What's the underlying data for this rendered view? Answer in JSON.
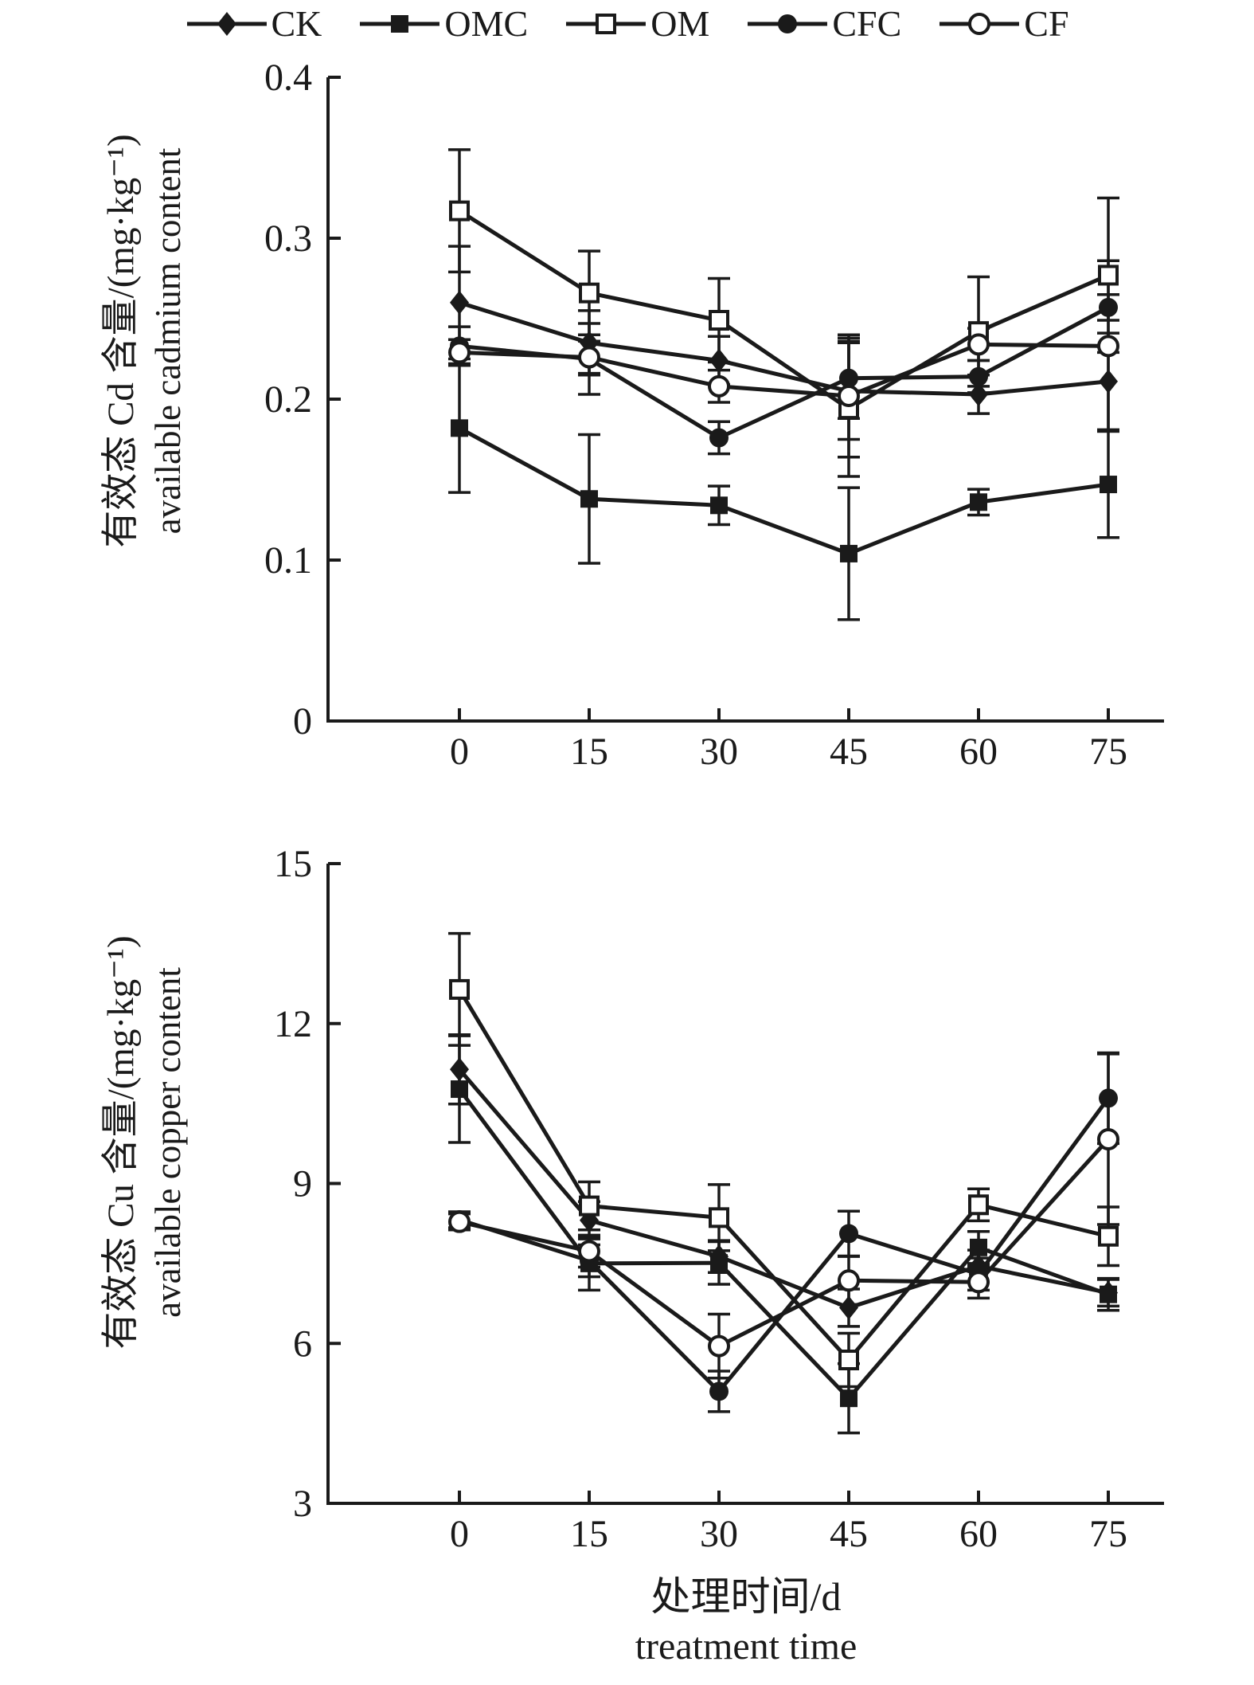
{
  "page": {
    "background": "#ffffff",
    "ink": "#1a1a1a"
  },
  "legend": {
    "position": "top",
    "items": [
      {
        "label": "CK",
        "marker": "diamond-filled"
      },
      {
        "label": "OMC",
        "marker": "square-filled"
      },
      {
        "label": "OM",
        "marker": "square-open"
      },
      {
        "label": "CFC",
        "marker": "circle-filled"
      },
      {
        "label": "CF",
        "marker": "circle-open"
      }
    ]
  },
  "xaxis": {
    "label_zh": "处理时间/d",
    "label_en": "treatment time",
    "ticks": [
      0,
      15,
      30,
      45,
      60,
      75
    ]
  },
  "chart_data": [
    {
      "id": "cd",
      "type": "line",
      "ylabel_zh": "有效态 Cd 含量/(mg·kg⁻¹)",
      "ylabel_en": "available cadmium content",
      "xlabel_zh": "处理时间/d",
      "xlabel_en": "treatment time",
      "xlim": [
        0,
        75
      ],
      "ylim": [
        0,
        0.4
      ],
      "grid": false,
      "legend_position": "top",
      "x": [
        0,
        15,
        30,
        45,
        60,
        75
      ],
      "xtick_labels": [
        "0",
        "15",
        "30",
        "45",
        "60",
        "75"
      ],
      "ytick_values": [
        0,
        0.1,
        0.2,
        0.3,
        0.4
      ],
      "ytick_labels": [
        "0",
        "0.1",
        "0.2",
        "0.3",
        "0.4"
      ],
      "series": [
        {
          "name": "CK",
          "marker": "diamond-filled",
          "values": [
            0.26,
            0.235,
            0.224,
            0.205,
            0.203,
            0.211
          ],
          "errors": [
            0.035,
            0.02,
            0.015,
            0.03,
            0.012,
            0.03
          ]
        },
        {
          "name": "OMC",
          "marker": "square-filled",
          "values": [
            0.182,
            0.138,
            0.134,
            0.104,
            0.136,
            0.147
          ],
          "errors": [
            0.04,
            0.04,
            0.012,
            0.041,
            0.008,
            0.033
          ]
        },
        {
          "name": "OM",
          "marker": "square-open",
          "values": [
            0.317,
            0.266,
            0.249,
            0.194,
            0.242,
            0.277
          ],
          "errors": [
            0.038,
            0.026,
            0.026,
            0.042,
            0.034,
            0.048
          ]
        },
        {
          "name": "CFC",
          "marker": "circle-filled",
          "values": [
            0.233,
            0.225,
            0.176,
            0.213,
            0.214,
            0.257
          ],
          "errors": [
            0.012,
            0.022,
            0.01,
            0.025,
            0.01,
            0.008
          ]
        },
        {
          "name": "CF",
          "marker": "circle-open",
          "values": [
            0.229,
            0.226,
            0.208,
            0.202,
            0.234,
            0.233
          ],
          "errors": [
            0.008,
            0.01,
            0.01,
            0.038,
            0.01,
            0.053
          ]
        }
      ]
    },
    {
      "id": "cu",
      "type": "line",
      "ylabel_zh": "有效态 Cu 含量/(mg·kg⁻¹)",
      "ylabel_en": "available copper content",
      "xlabel_zh": "处理时间/d",
      "xlabel_en": "treatment time",
      "xlim": [
        0,
        75
      ],
      "ylim": [
        3,
        15
      ],
      "grid": false,
      "legend_position": "top",
      "x": [
        0,
        15,
        30,
        45,
        60,
        75
      ],
      "xtick_labels": [
        "0",
        "15",
        "30",
        "45",
        "60",
        "75"
      ],
      "ytick_values": [
        3,
        6,
        9,
        12,
        15
      ],
      "ytick_labels": [
        "3",
        "6",
        "9",
        "12",
        "15"
      ],
      "series": [
        {
          "name": "CK",
          "marker": "diamond-filled",
          "values": [
            11.14,
            8.31,
            7.63,
            6.67,
            7.45,
            6.95
          ],
          "errors": [
            0.65,
            0.35,
            0.3,
            0.35,
            0.3,
            0.25
          ]
        },
        {
          "name": "OMC",
          "marker": "square-filled",
          "values": [
            10.77,
            7.5,
            7.51,
            4.97,
            7.8,
            6.92
          ],
          "errors": [
            1.0,
            0.5,
            0.4,
            0.65,
            0.3,
            0.3
          ]
        },
        {
          "name": "OM",
          "marker": "square-open",
          "values": [
            12.64,
            8.58,
            8.36,
            5.69,
            8.6,
            8.01
          ],
          "errors": [
            1.05,
            0.45,
            0.62,
            0.5,
            0.3,
            0.55
          ]
        },
        {
          "name": "CFC",
          "marker": "circle-filled",
          "values": [
            8.32,
            7.55,
            5.1,
            8.06,
            7.3,
            10.6
          ],
          "errors": [
            0.15,
            0.3,
            0.38,
            0.42,
            0.3,
            0.85
          ]
        },
        {
          "name": "CF",
          "marker": "circle-open",
          "values": [
            8.28,
            7.73,
            5.95,
            7.18,
            7.15,
            9.83
          ],
          "errors": [
            0.15,
            0.3,
            0.6,
            0.45,
            0.3,
            1.6
          ]
        }
      ]
    }
  ]
}
